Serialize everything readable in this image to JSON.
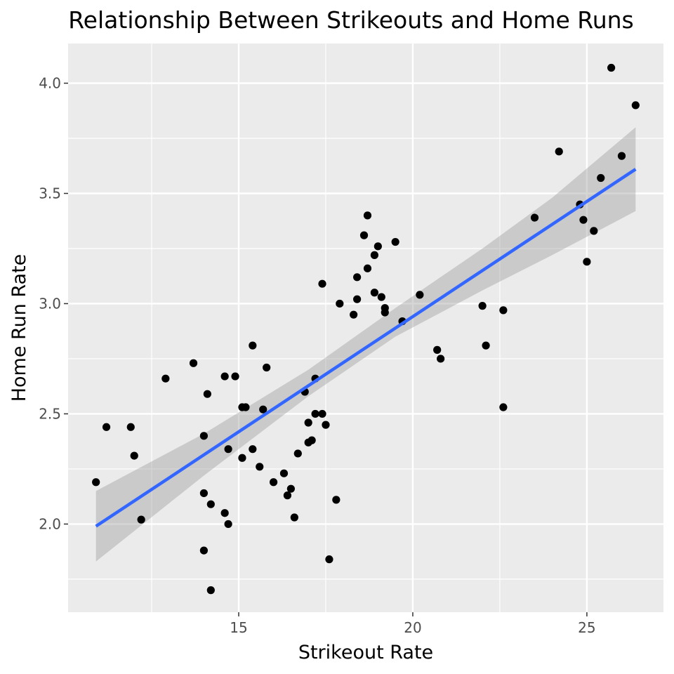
{
  "chart_data": {
    "type": "scatter",
    "title": "Relationship Between Strikeouts and Home Runs",
    "xlabel": "Strikeout Rate",
    "ylabel": "Home Run Rate",
    "xlim": [
      10.1,
      27.2
    ],
    "ylim": [
      1.6,
      4.18
    ],
    "x_ticks": [
      15,
      20,
      25
    ],
    "x_minor_ticks": [
      12.5,
      17.5,
      22.5
    ],
    "y_ticks": [
      2.0,
      2.5,
      3.0,
      3.5,
      4.0
    ],
    "y_minor_ticks": [
      1.75,
      2.25,
      2.75,
      3.25,
      3.75
    ],
    "x_tick_labels": [
      "15",
      "20",
      "25"
    ],
    "y_tick_labels": [
      "2.0",
      "2.5",
      "3.0",
      "3.5",
      "4.0"
    ],
    "grid": true,
    "colors": {
      "panel": "#ebebeb",
      "grid": "#ffffff",
      "points": "#000000",
      "fit_line": "#3366ff",
      "confidence_band": "#999999"
    },
    "points": [
      {
        "x": 10.9,
        "y": 2.19
      },
      {
        "x": 11.2,
        "y": 2.44
      },
      {
        "x": 11.9,
        "y": 2.44
      },
      {
        "x": 12.0,
        "y": 2.31
      },
      {
        "x": 12.2,
        "y": 2.02
      },
      {
        "x": 12.9,
        "y": 2.66
      },
      {
        "x": 13.7,
        "y": 2.73
      },
      {
        "x": 14.0,
        "y": 2.4
      },
      {
        "x": 14.0,
        "y": 2.14
      },
      {
        "x": 14.0,
        "y": 1.88
      },
      {
        "x": 14.1,
        "y": 2.59
      },
      {
        "x": 14.2,
        "y": 2.09
      },
      {
        "x": 14.2,
        "y": 1.7
      },
      {
        "x": 14.6,
        "y": 2.67
      },
      {
        "x": 14.6,
        "y": 2.05
      },
      {
        "x": 14.7,
        "y": 2.34
      },
      {
        "x": 14.7,
        "y": 2.0
      },
      {
        "x": 14.9,
        "y": 2.67
      },
      {
        "x": 15.1,
        "y": 2.53
      },
      {
        "x": 15.1,
        "y": 2.3
      },
      {
        "x": 15.2,
        "y": 2.53
      },
      {
        "x": 15.4,
        "y": 2.81
      },
      {
        "x": 15.4,
        "y": 2.34
      },
      {
        "x": 15.6,
        "y": 2.26
      },
      {
        "x": 15.7,
        "y": 2.52
      },
      {
        "x": 15.8,
        "y": 2.71
      },
      {
        "x": 16.0,
        "y": 2.19
      },
      {
        "x": 16.3,
        "y": 2.23
      },
      {
        "x": 16.4,
        "y": 2.13
      },
      {
        "x": 16.5,
        "y": 2.16
      },
      {
        "x": 16.6,
        "y": 2.03
      },
      {
        "x": 16.7,
        "y": 2.32
      },
      {
        "x": 16.9,
        "y": 2.6
      },
      {
        "x": 17.0,
        "y": 2.37
      },
      {
        "x": 17.0,
        "y": 2.46
      },
      {
        "x": 17.1,
        "y": 2.38
      },
      {
        "x": 17.2,
        "y": 2.5
      },
      {
        "x": 17.2,
        "y": 2.66
      },
      {
        "x": 17.4,
        "y": 2.5
      },
      {
        "x": 17.4,
        "y": 3.09
      },
      {
        "x": 17.5,
        "y": 2.45
      },
      {
        "x": 17.6,
        "y": 1.84
      },
      {
        "x": 17.8,
        "y": 2.11
      },
      {
        "x": 17.9,
        "y": 3.0
      },
      {
        "x": 18.3,
        "y": 2.95
      },
      {
        "x": 18.4,
        "y": 3.02
      },
      {
        "x": 18.4,
        "y": 3.12
      },
      {
        "x": 18.6,
        "y": 3.31
      },
      {
        "x": 18.7,
        "y": 3.16
      },
      {
        "x": 18.7,
        "y": 3.4
      },
      {
        "x": 18.9,
        "y": 3.22
      },
      {
        "x": 18.9,
        "y": 3.05
      },
      {
        "x": 19.0,
        "y": 3.26
      },
      {
        "x": 19.1,
        "y": 3.03
      },
      {
        "x": 19.2,
        "y": 2.96
      },
      {
        "x": 19.2,
        "y": 2.98
      },
      {
        "x": 19.5,
        "y": 3.28
      },
      {
        "x": 19.7,
        "y": 2.92
      },
      {
        "x": 20.2,
        "y": 3.04
      },
      {
        "x": 20.7,
        "y": 2.79
      },
      {
        "x": 20.8,
        "y": 2.75
      },
      {
        "x": 22.0,
        "y": 2.99
      },
      {
        "x": 22.1,
        "y": 2.81
      },
      {
        "x": 22.6,
        "y": 2.97
      },
      {
        "x": 22.6,
        "y": 2.53
      },
      {
        "x": 23.5,
        "y": 3.39
      },
      {
        "x": 24.2,
        "y": 3.69
      },
      {
        "x": 24.8,
        "y": 3.45
      },
      {
        "x": 24.9,
        "y": 3.38
      },
      {
        "x": 25.0,
        "y": 3.19
      },
      {
        "x": 25.2,
        "y": 3.33
      },
      {
        "x": 25.4,
        "y": 3.57
      },
      {
        "x": 25.7,
        "y": 4.07
      },
      {
        "x": 26.0,
        "y": 3.67
      },
      {
        "x": 26.4,
        "y": 3.9
      }
    ],
    "fit_line": {
      "x": [
        10.9,
        26.4
      ],
      "y": [
        1.99,
        3.61
      ]
    },
    "confidence_band": [
      {
        "x": 10.9,
        "lower": 1.83,
        "upper": 2.15
      },
      {
        "x": 14.0,
        "lower": 2.22,
        "upper": 2.41
      },
      {
        "x": 17.0,
        "lower": 2.58,
        "upper": 2.7
      },
      {
        "x": 19.5,
        "lower": 2.85,
        "upper": 2.98
      },
      {
        "x": 22.0,
        "lower": 3.06,
        "upper": 3.25
      },
      {
        "x": 24.0,
        "lower": 3.22,
        "upper": 3.48
      },
      {
        "x": 26.4,
        "lower": 3.42,
        "upper": 3.8
      }
    ]
  }
}
